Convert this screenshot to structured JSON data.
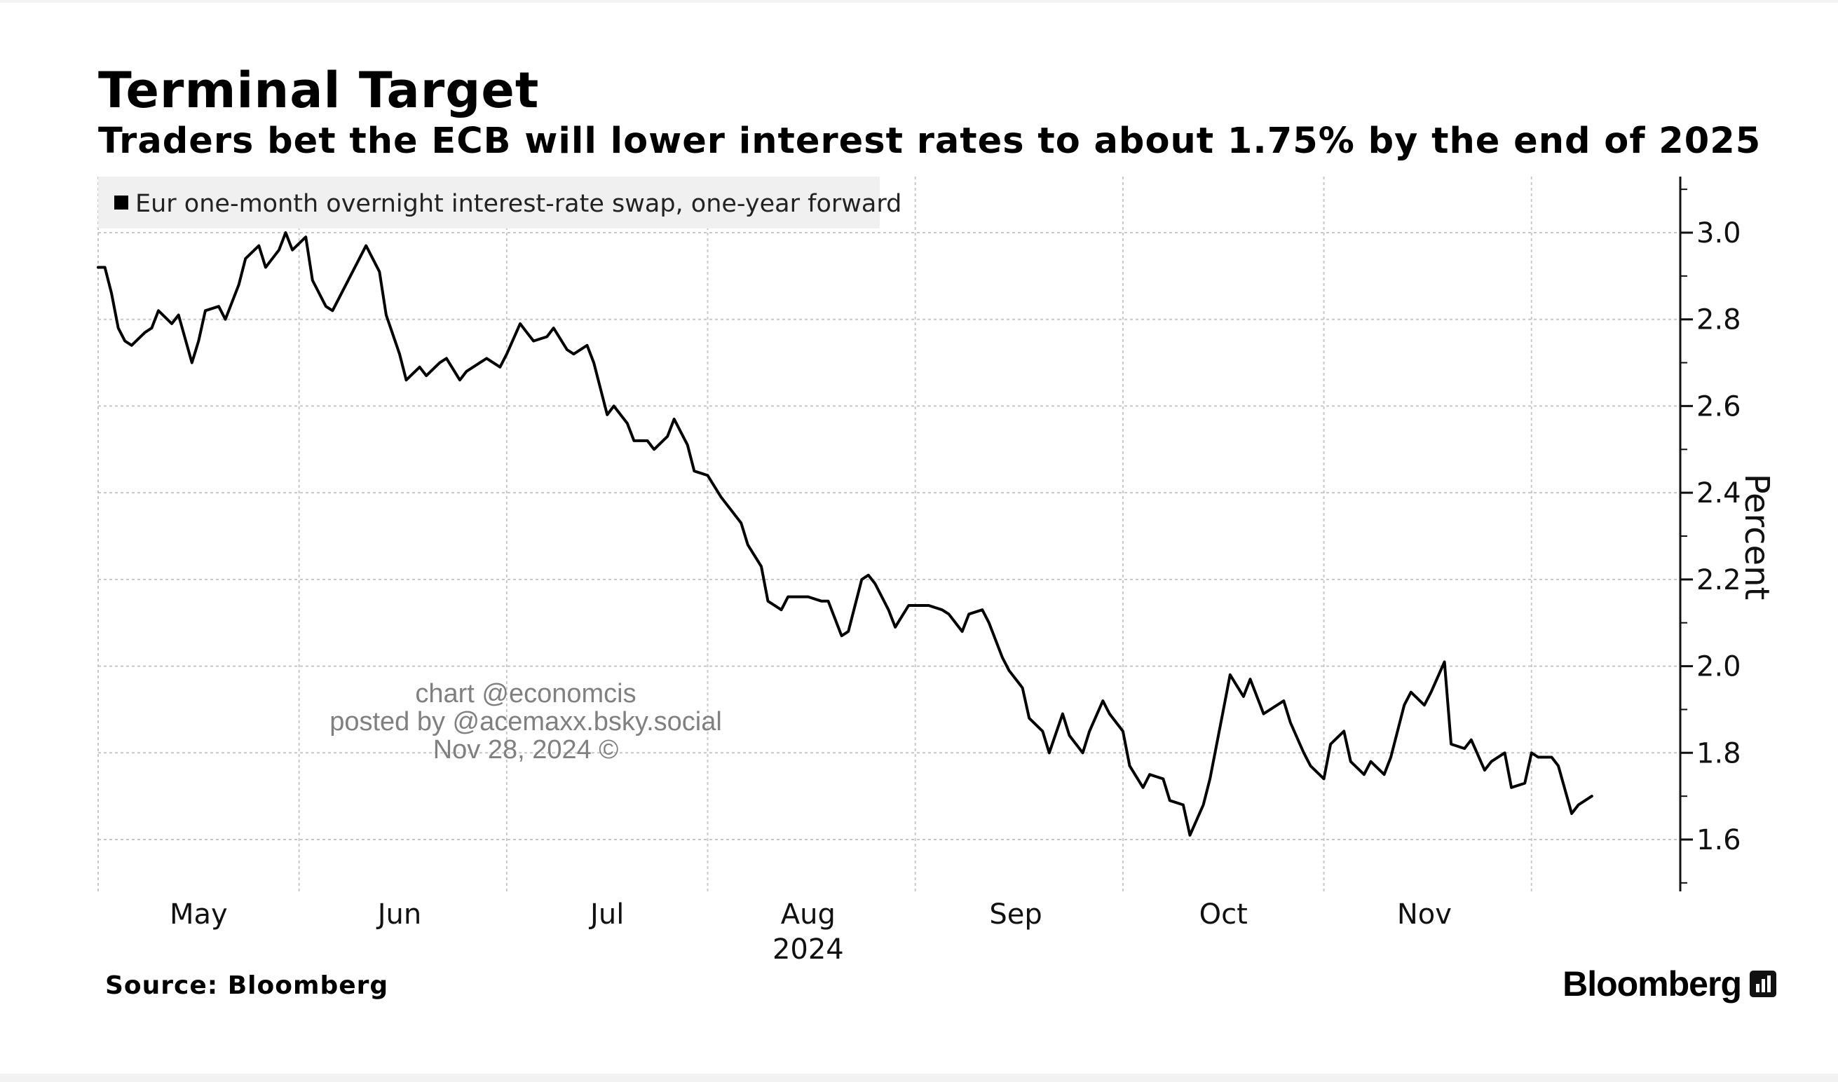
{
  "title": "Terminal Target",
  "subtitle": "Traders bet the ECB will lower interest rates to about 1.75% by the end of 2025",
  "source": "Source: Bloomberg",
  "brand": "Bloomberg",
  "watermark": {
    "line1": "chart @economcis",
    "line2": "posted by @acemaxx.bsky.social",
    "line3": "Nov 28, 2024 ©"
  },
  "colors": {
    "line": "#000000",
    "grid": "#c8c8c8",
    "legend_bg": "#f0f0f0",
    "watermark": "#808080"
  },
  "chart_data": {
    "type": "line",
    "xaxis_year_label": "2024",
    "ylabel": "Percent",
    "ylim": [
      1.45,
      3.12
    ],
    "yticks": [
      1.6,
      1.8,
      2.0,
      2.2,
      2.4,
      2.6,
      2.8,
      3.0
    ],
    "ytick_labels": [
      "1.6",
      "1.8",
      "2.0",
      "2.2",
      "2.4",
      "2.6",
      "2.8",
      "3.0"
    ],
    "xlim": [
      "2024-04-01",
      "2024-11-23"
    ],
    "month_boundaries": [
      "2024-04-01",
      "2024-05-01",
      "2024-06-01",
      "2024-07-01",
      "2024-08-01",
      "2024-09-01",
      "2024-10-01",
      "2024-11-01"
    ],
    "month_labels": [
      {
        "date": "2024-04-16",
        "label": "May"
      },
      {
        "date": "2024-05-16",
        "label": "Jun"
      },
      {
        "date": "2024-06-16",
        "label": "Jul"
      },
      {
        "date": "2024-07-16",
        "label": "Aug"
      },
      {
        "date": "2024-08-16",
        "label": "Sep"
      },
      {
        "date": "2024-09-16",
        "label": "Oct"
      },
      {
        "date": "2024-10-16",
        "label": "Nov"
      }
    ],
    "grid": true,
    "legend_position": "top-left",
    "series": [
      {
        "name": "Eur one-month overnight interest-rate swap, one-year forward",
        "color": "#000000",
        "points": [
          [
            "2024-04-01",
            2.92
          ],
          [
            "2024-04-02",
            2.92
          ],
          [
            "2024-04-03",
            2.86
          ],
          [
            "2024-04-04",
            2.78
          ],
          [
            "2024-04-05",
            2.75
          ],
          [
            "2024-04-06",
            2.74
          ],
          [
            "2024-04-08",
            2.77
          ],
          [
            "2024-04-09",
            2.78
          ],
          [
            "2024-04-10",
            2.82
          ],
          [
            "2024-04-12",
            2.79
          ],
          [
            "2024-04-13",
            2.81
          ],
          [
            "2024-04-15",
            2.7
          ],
          [
            "2024-04-16",
            2.75
          ],
          [
            "2024-04-17",
            2.82
          ],
          [
            "2024-04-19",
            2.83
          ],
          [
            "2024-04-20",
            2.8
          ],
          [
            "2024-04-22",
            2.88
          ],
          [
            "2024-04-23",
            2.94
          ],
          [
            "2024-04-25",
            2.97
          ],
          [
            "2024-04-26",
            2.92
          ],
          [
            "2024-04-28",
            2.96
          ],
          [
            "2024-04-29",
            3.0
          ],
          [
            "2024-04-30",
            2.96
          ],
          [
            "2024-05-02",
            2.99
          ],
          [
            "2024-05-03",
            2.89
          ],
          [
            "2024-05-05",
            2.83
          ],
          [
            "2024-05-06",
            2.82
          ],
          [
            "2024-05-08",
            2.88
          ],
          [
            "2024-05-10",
            2.94
          ],
          [
            "2024-05-11",
            2.97
          ],
          [
            "2024-05-13",
            2.91
          ],
          [
            "2024-05-14",
            2.81
          ],
          [
            "2024-05-16",
            2.72
          ],
          [
            "2024-05-17",
            2.66
          ],
          [
            "2024-05-19",
            2.69
          ],
          [
            "2024-05-20",
            2.67
          ],
          [
            "2024-05-22",
            2.7
          ],
          [
            "2024-05-23",
            2.71
          ],
          [
            "2024-05-25",
            2.66
          ],
          [
            "2024-05-26",
            2.68
          ],
          [
            "2024-05-28",
            2.7
          ],
          [
            "2024-05-29",
            2.71
          ],
          [
            "2024-05-31",
            2.69
          ],
          [
            "2024-06-01",
            2.72
          ],
          [
            "2024-06-03",
            2.79
          ],
          [
            "2024-06-04",
            2.77
          ],
          [
            "2024-06-05",
            2.75
          ],
          [
            "2024-06-07",
            2.76
          ],
          [
            "2024-06-08",
            2.78
          ],
          [
            "2024-06-10",
            2.73
          ],
          [
            "2024-06-11",
            2.72
          ],
          [
            "2024-06-13",
            2.74
          ],
          [
            "2024-06-14",
            2.7
          ],
          [
            "2024-06-16",
            2.58
          ],
          [
            "2024-06-17",
            2.6
          ],
          [
            "2024-06-19",
            2.56
          ],
          [
            "2024-06-20",
            2.52
          ],
          [
            "2024-06-22",
            2.52
          ],
          [
            "2024-06-23",
            2.5
          ],
          [
            "2024-06-25",
            2.53
          ],
          [
            "2024-06-26",
            2.57
          ],
          [
            "2024-06-28",
            2.51
          ],
          [
            "2024-06-29",
            2.45
          ],
          [
            "2024-07-01",
            2.44
          ],
          [
            "2024-07-03",
            2.39
          ],
          [
            "2024-07-04",
            2.37
          ],
          [
            "2024-07-06",
            2.33
          ],
          [
            "2024-07-07",
            2.28
          ],
          [
            "2024-07-09",
            2.23
          ],
          [
            "2024-07-10",
            2.15
          ],
          [
            "2024-07-12",
            2.13
          ],
          [
            "2024-07-13",
            2.16
          ],
          [
            "2024-07-15",
            2.16
          ],
          [
            "2024-07-16",
            2.16
          ],
          [
            "2024-07-18",
            2.15
          ],
          [
            "2024-07-19",
            2.15
          ],
          [
            "2024-07-21",
            2.07
          ],
          [
            "2024-07-22",
            2.08
          ],
          [
            "2024-07-24",
            2.2
          ],
          [
            "2024-07-25",
            2.21
          ],
          [
            "2024-07-26",
            2.19
          ],
          [
            "2024-07-28",
            2.13
          ],
          [
            "2024-07-29",
            2.09
          ],
          [
            "2024-07-31",
            2.14
          ],
          [
            "2024-08-01",
            2.14
          ],
          [
            "2024-08-03",
            2.14
          ],
          [
            "2024-08-05",
            2.13
          ],
          [
            "2024-08-06",
            2.12
          ],
          [
            "2024-08-08",
            2.08
          ],
          [
            "2024-08-09",
            2.12
          ],
          [
            "2024-08-11",
            2.13
          ],
          [
            "2024-08-12",
            2.1
          ],
          [
            "2024-08-14",
            2.02
          ],
          [
            "2024-08-15",
            1.99
          ],
          [
            "2024-08-17",
            1.95
          ],
          [
            "2024-08-18",
            1.88
          ],
          [
            "2024-08-20",
            1.85
          ],
          [
            "2024-08-21",
            1.8
          ],
          [
            "2024-08-23",
            1.89
          ],
          [
            "2024-08-24",
            1.84
          ],
          [
            "2024-08-26",
            1.8
          ],
          [
            "2024-08-27",
            1.85
          ],
          [
            "2024-08-29",
            1.92
          ],
          [
            "2024-08-30",
            1.89
          ],
          [
            "2024-09-01",
            1.85
          ],
          [
            "2024-09-02",
            1.77
          ],
          [
            "2024-09-04",
            1.72
          ],
          [
            "2024-09-05",
            1.75
          ],
          [
            "2024-09-07",
            1.74
          ],
          [
            "2024-09-08",
            1.69
          ],
          [
            "2024-09-10",
            1.68
          ],
          [
            "2024-09-11",
            1.61
          ],
          [
            "2024-09-13",
            1.68
          ],
          [
            "2024-09-14",
            1.74
          ],
          [
            "2024-09-16",
            1.9
          ],
          [
            "2024-09-17",
            1.98
          ],
          [
            "2024-09-19",
            1.93
          ],
          [
            "2024-09-20",
            1.97
          ],
          [
            "2024-09-22",
            1.89
          ],
          [
            "2024-09-23",
            1.9
          ],
          [
            "2024-09-25",
            1.92
          ],
          [
            "2024-09-26",
            1.87
          ],
          [
            "2024-09-28",
            1.8
          ],
          [
            "2024-09-29",
            1.77
          ],
          [
            "2024-10-01",
            1.74
          ],
          [
            "2024-10-02",
            1.82
          ],
          [
            "2024-10-04",
            1.85
          ],
          [
            "2024-10-05",
            1.78
          ],
          [
            "2024-10-07",
            1.75
          ],
          [
            "2024-10-08",
            1.78
          ],
          [
            "2024-10-10",
            1.75
          ],
          [
            "2024-10-11",
            1.79
          ],
          [
            "2024-10-13",
            1.91
          ],
          [
            "2024-10-14",
            1.94
          ],
          [
            "2024-10-16",
            1.91
          ],
          [
            "2024-10-17",
            1.94
          ],
          [
            "2024-10-19",
            2.01
          ],
          [
            "2024-10-20",
            1.82
          ],
          [
            "2024-10-22",
            1.81
          ],
          [
            "2024-10-23",
            1.83
          ],
          [
            "2024-10-25",
            1.76
          ],
          [
            "2024-10-26",
            1.78
          ],
          [
            "2024-10-28",
            1.8
          ],
          [
            "2024-10-29",
            1.72
          ],
          [
            "2024-10-31",
            1.73
          ],
          [
            "2024-11-01",
            1.8
          ],
          [
            "2024-11-02",
            1.79
          ],
          [
            "2024-11-04",
            1.79
          ],
          [
            "2024-11-05",
            1.77
          ],
          [
            "2024-11-07",
            1.66
          ],
          [
            "2024-11-08",
            1.68
          ],
          [
            "2024-11-10",
            1.7
          ]
        ]
      }
    ]
  }
}
